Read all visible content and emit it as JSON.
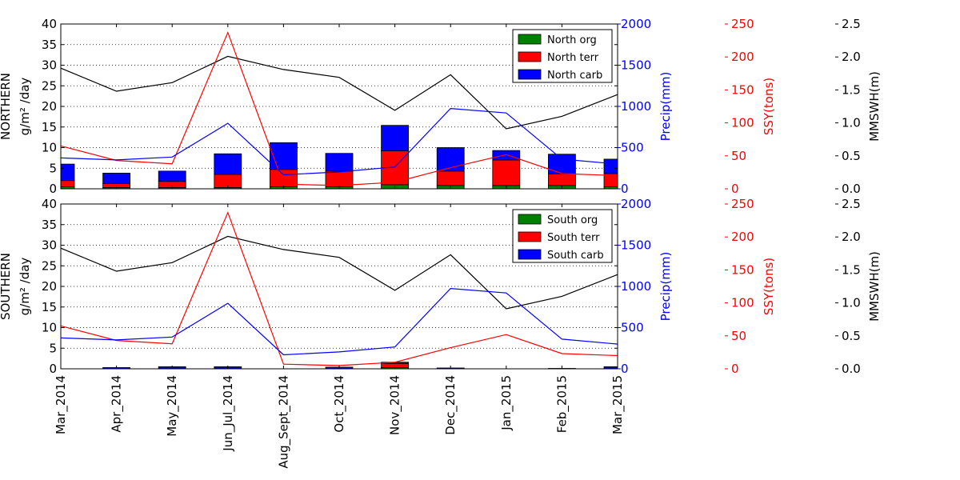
{
  "colors": {
    "org": "#008000",
    "terr": "#ff0000",
    "carb": "#0000ff",
    "wave": "#000000",
    "axis": "#000000"
  },
  "x_labels": [
    "Mar_2014",
    "Apr_2014",
    "May_2014",
    "Jun_Jul_2014",
    "Aug_Sept_2014",
    "Oct_2014",
    "Nov_2014",
    "Dec_2014",
    "Jan_2015",
    "Feb_2015",
    "Mar_2015"
  ],
  "chart_data": [
    {
      "type": "bar",
      "panel": "top",
      "ylabel_region": "NORTHERN",
      "ylabel_unit": "g/m² /day",
      "ylim": [
        0,
        40
      ],
      "yticks": [
        0,
        5,
        10,
        15,
        20,
        25,
        30,
        35,
        40
      ],
      "bar_series": [
        {
          "name": "North org",
          "color": "#008000",
          "values": [
            0.5,
            0.3,
            0.3,
            0.3,
            0.5,
            0.5,
            1.0,
            0.8,
            0.8,
            0.8,
            0.5
          ]
        },
        {
          "name": "North terr",
          "color": "#ff0000",
          "values": [
            1.5,
            1.0,
            1.5,
            3.2,
            4.2,
            3.8,
            8.2,
            3.5,
            6.2,
            2.8,
            3.2
          ]
        },
        {
          "name": "North carb",
          "color": "#0000ff",
          "values": [
            4.0,
            2.5,
            2.5,
            5.0,
            6.5,
            4.3,
            6.2,
            5.7,
            2.3,
            4.8,
            3.5
          ]
        }
      ],
      "precip": {
        "axis_label": "Precip(mm)",
        "ylim": [
          0,
          2000
        ],
        "yticks": [
          0,
          500,
          1000,
          1500,
          2000
        ],
        "values": [
          375,
          350,
          385,
          795,
          170,
          205,
          265,
          975,
          920,
          360,
          300
        ]
      },
      "ssy": {
        "axis_label": "SSY(tons)",
        "ylim": [
          0,
          250
        ],
        "yticks": [
          0,
          50,
          100,
          150,
          200,
          250
        ],
        "values": [
          65,
          43,
          38,
          237,
          7,
          5,
          10,
          32,
          52,
          23,
          20
        ]
      },
      "mmswh": {
        "axis_label": "MMSWH(m)",
        "ylim": [
          0.0,
          2.5
        ],
        "yticks": [
          0.0,
          0.5,
          1.0,
          1.5,
          2.0,
          2.5
        ],
        "values": [
          1.83,
          1.48,
          1.61,
          2.01,
          1.81,
          1.69,
          1.19,
          1.73,
          0.91,
          1.1,
          1.43
        ]
      }
    },
    {
      "type": "bar",
      "panel": "bottom",
      "ylabel_region": "SOUTHERN",
      "ylabel_unit": "g/m² /day",
      "ylim": [
        0,
        40
      ],
      "yticks": [
        0,
        5,
        10,
        15,
        20,
        25,
        30,
        35,
        40
      ],
      "bar_series": [
        {
          "name": "South org",
          "color": "#008000",
          "values": [
            0.0,
            0.0,
            0.0,
            0.0,
            0.0,
            0.0,
            0.3,
            0.0,
            0.0,
            0.0,
            0.0
          ]
        },
        {
          "name": "South terr",
          "color": "#ff0000",
          "values": [
            0.0,
            0.0,
            0.0,
            0.0,
            0.0,
            0.0,
            1.0,
            0.0,
            0.0,
            0.0,
            0.0
          ]
        },
        {
          "name": "South carb",
          "color": "#0000ff",
          "values": [
            0.0,
            0.3,
            0.5,
            0.5,
            0.0,
            0.4,
            0.3,
            0.2,
            0.0,
            0.1,
            0.5
          ]
        }
      ],
      "precip": {
        "axis_label": "Precip(mm)",
        "ylim": [
          0,
          2000
        ],
        "yticks": [
          0,
          500,
          1000,
          1500,
          2000
        ],
        "values": [
          375,
          350,
          385,
          795,
          170,
          205,
          265,
          975,
          920,
          360,
          300
        ]
      },
      "ssy": {
        "axis_label": "SSY(tons)",
        "ylim": [
          0,
          250
        ],
        "yticks": [
          0,
          50,
          100,
          150,
          200,
          250
        ],
        "values": [
          65,
          43,
          38,
          237,
          7,
          5,
          10,
          32,
          52,
          23,
          20
        ]
      },
      "mmswh": {
        "axis_label": "MMSWH(m)",
        "ylim": [
          0.0,
          2.5
        ],
        "yticks": [
          0.0,
          0.5,
          1.0,
          1.5,
          2.0,
          2.5
        ],
        "values": [
          1.83,
          1.48,
          1.61,
          2.01,
          1.81,
          1.69,
          1.19,
          1.73,
          0.91,
          1.1,
          1.43
        ]
      }
    }
  ]
}
